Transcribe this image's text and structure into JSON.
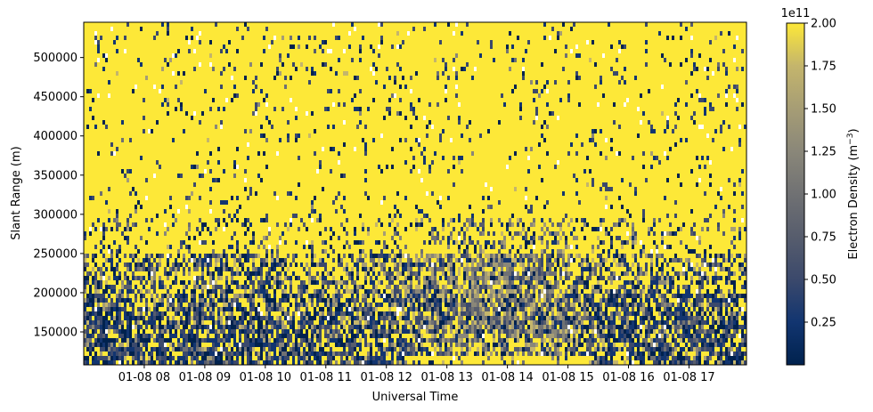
{
  "chart_data": {
    "type": "heatmap",
    "title": "",
    "xlabel": "Universal Time",
    "ylabel": "Slant Range (m)",
    "x_range_hours": [
      7.0,
      17.95
    ],
    "x_ticks": [
      {
        "value": 8,
        "label": "01-08 08"
      },
      {
        "value": 9,
        "label": "01-08 09"
      },
      {
        "value": 10,
        "label": "01-08 10"
      },
      {
        "value": 11,
        "label": "01-08 11"
      },
      {
        "value": 12,
        "label": "01-08 12"
      },
      {
        "value": 13,
        "label": "01-08 13"
      },
      {
        "value": 14,
        "label": "01-08 14"
      },
      {
        "value": 15,
        "label": "01-08 15"
      },
      {
        "value": 16,
        "label": "01-08 16"
      },
      {
        "value": 17,
        "label": "01-08 17"
      }
    ],
    "ylim": [
      108000,
      545000
    ],
    "y_ticks": [
      {
        "value": 150000,
        "label": "150000"
      },
      {
        "value": 200000,
        "label": "200000"
      },
      {
        "value": 250000,
        "label": "250000"
      },
      {
        "value": 300000,
        "label": "300000"
      },
      {
        "value": 350000,
        "label": "350000"
      },
      {
        "value": 400000,
        "label": "400000"
      },
      {
        "value": 450000,
        "label": "450000"
      },
      {
        "value": 500000,
        "label": "500000"
      }
    ],
    "colorbar": {
      "label": "Electron Density (m",
      "label_exponent": "−3",
      "label_close": ")",
      "offset_text": "1e11",
      "colormap": "cividis",
      "range": [
        0,
        2.0
      ],
      "ticks": [
        {
          "value": 0.25,
          "label": "0.25"
        },
        {
          "value": 0.5,
          "label": "0.50"
        },
        {
          "value": 0.75,
          "label": "0.75"
        },
        {
          "value": 1.0,
          "label": "1.00"
        },
        {
          "value": 1.25,
          "label": "1.25"
        },
        {
          "value": 1.5,
          "label": "1.50"
        },
        {
          "value": 1.75,
          "label": "1.75"
        },
        {
          "value": 2.0,
          "label": "2.00"
        }
      ]
    },
    "colors": {
      "low": "#00224e",
      "mid": "#7c7b78",
      "high": "#fde838",
      "missing": "#ffffff"
    }
  }
}
